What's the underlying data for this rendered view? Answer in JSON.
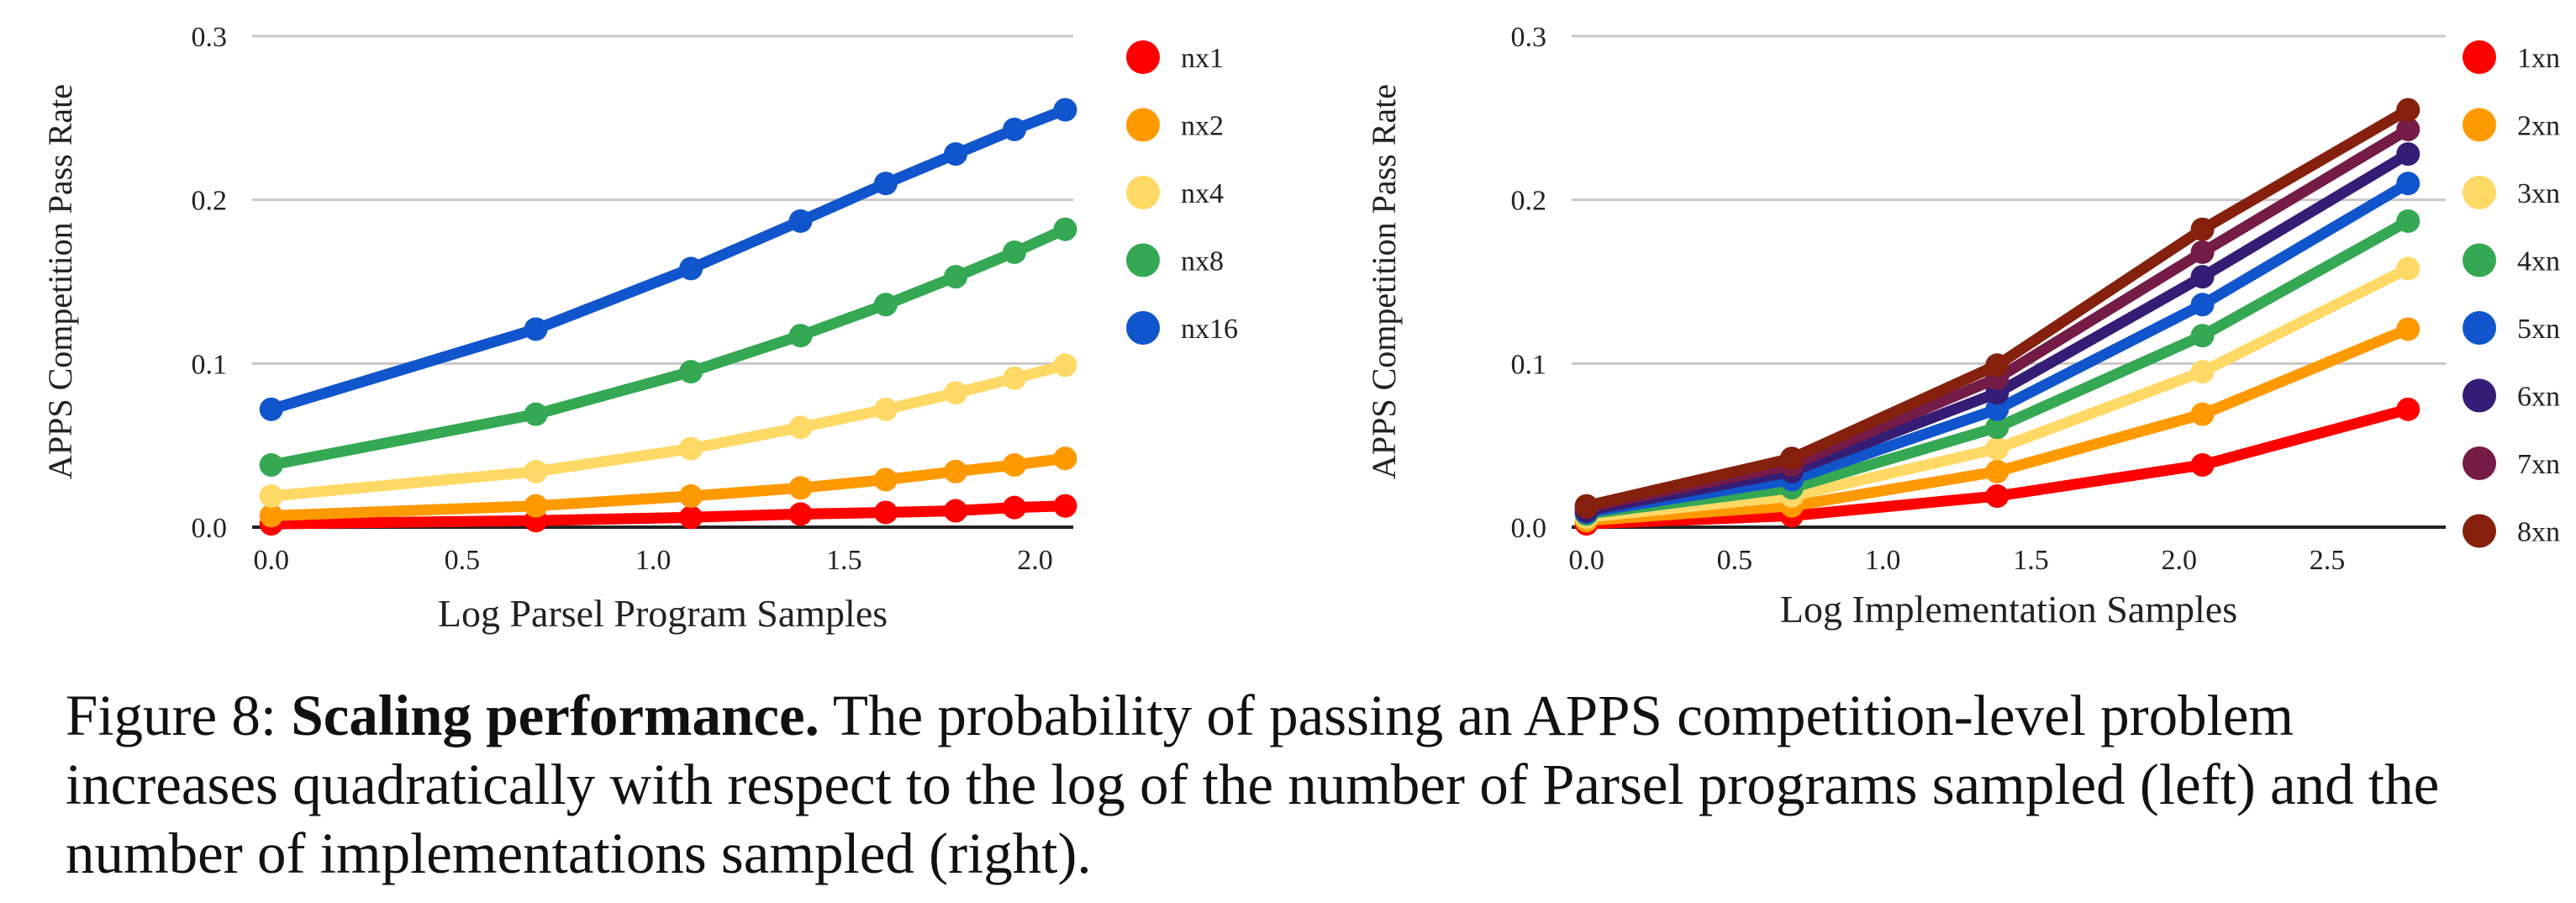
{
  "chart_data": [
    {
      "type": "line",
      "xlabel": "Log Parsel Program Samples",
      "ylabel": "APPS Competition Pass Rate",
      "xlim": [
        -0.05,
        2.1
      ],
      "ylim": [
        0,
        0.3
      ],
      "x_ticks": [
        0.0,
        0.5,
        1.0,
        1.5,
        2.0
      ],
      "x_tick_labels": [
        "0.0",
        "0.5",
        "1.0",
        "1.5",
        "2.0"
      ],
      "y_ticks": [
        0.0,
        0.1,
        0.2,
        0.3
      ],
      "y_tick_labels": [
        "0.0",
        "0.1",
        "0.2",
        "0.3"
      ],
      "grid": "horizontal",
      "legend_position": "right",
      "series": [
        {
          "name": "nx1",
          "color": "#ff0000",
          "x": [
            0.0,
            0.693,
            1.099,
            1.386,
            1.609,
            1.792,
            1.946,
            2.079
          ],
          "y": [
            0.002,
            0.004,
            0.006,
            0.008,
            0.009,
            0.01,
            0.012,
            0.013
          ]
        },
        {
          "name": "nx2",
          "color": "#ff9900",
          "x": [
            0.0,
            0.693,
            1.099,
            1.386,
            1.609,
            1.792,
            1.946,
            2.079
          ],
          "y": [
            0.007,
            0.013,
            0.019,
            0.024,
            0.029,
            0.034,
            0.038,
            0.042
          ]
        },
        {
          "name": "nx4",
          "color": "#ffd966",
          "x": [
            0.0,
            0.693,
            1.099,
            1.386,
            1.609,
            1.792,
            1.946,
            2.079
          ],
          "y": [
            0.019,
            0.034,
            0.048,
            0.061,
            0.072,
            0.082,
            0.091,
            0.099
          ]
        },
        {
          "name": "nx8",
          "color": "#34a853",
          "x": [
            0.0,
            0.693,
            1.099,
            1.386,
            1.609,
            1.792,
            1.946,
            2.079
          ],
          "y": [
            0.038,
            0.069,
            0.095,
            0.117,
            0.136,
            0.153,
            0.168,
            0.182
          ]
        },
        {
          "name": "nx16",
          "color": "#1155cc",
          "x": [
            0.0,
            0.693,
            1.099,
            1.386,
            1.609,
            1.792,
            1.946,
            2.079
          ],
          "y": [
            0.072,
            0.121,
            0.158,
            0.187,
            0.21,
            0.228,
            0.243,
            0.255
          ]
        }
      ]
    },
    {
      "type": "line",
      "xlabel": "Log Implementation Samples",
      "ylabel": "APPS Competition Pass Rate",
      "xlim": [
        -0.05,
        2.9
      ],
      "ylim": [
        0,
        0.3
      ],
      "x_ticks": [
        0.0,
        0.5,
        1.0,
        1.5,
        2.0,
        2.5
      ],
      "x_tick_labels": [
        "0.0",
        "0.5",
        "1.0",
        "1.5",
        "2.0",
        "2.5"
      ],
      "y_ticks": [
        0.0,
        0.1,
        0.2,
        0.3
      ],
      "y_tick_labels": [
        "0.0",
        "0.1",
        "0.2",
        "0.3"
      ],
      "grid": "horizontal",
      "legend_position": "right",
      "series": [
        {
          "name": "1xn",
          "color": "#ff0000",
          "x": [
            0.0,
            0.693,
            1.386,
            2.079,
            2.773
          ],
          "y": [
            0.002,
            0.007,
            0.019,
            0.038,
            0.072
          ]
        },
        {
          "name": "2xn",
          "color": "#ff9900",
          "x": [
            0.0,
            0.693,
            1.386,
            2.079,
            2.773
          ],
          "y": [
            0.004,
            0.013,
            0.034,
            0.069,
            0.121
          ]
        },
        {
          "name": "3xn",
          "color": "#ffd966",
          "x": [
            0.0,
            0.693,
            1.386,
            2.079,
            2.773
          ],
          "y": [
            0.006,
            0.019,
            0.048,
            0.095,
            0.158
          ]
        },
        {
          "name": "4xn",
          "color": "#34a853",
          "x": [
            0.0,
            0.693,
            1.386,
            2.079,
            2.773
          ],
          "y": [
            0.008,
            0.024,
            0.061,
            0.117,
            0.187
          ]
        },
        {
          "name": "5xn",
          "color": "#1155cc",
          "x": [
            0.0,
            0.693,
            1.386,
            2.079,
            2.773
          ],
          "y": [
            0.009,
            0.029,
            0.072,
            0.136,
            0.21
          ]
        },
        {
          "name": "6xn",
          "color": "#351c75",
          "x": [
            0.0,
            0.693,
            1.386,
            2.079,
            2.773
          ],
          "y": [
            0.01,
            0.034,
            0.082,
            0.153,
            0.228
          ]
        },
        {
          "name": "7xn",
          "color": "#741b47",
          "x": [
            0.0,
            0.693,
            1.386,
            2.079,
            2.773
          ],
          "y": [
            0.012,
            0.038,
            0.091,
            0.168,
            0.243
          ]
        },
        {
          "name": "8xn",
          "color": "#85200c",
          "x": [
            0.0,
            0.693,
            1.386,
            2.079,
            2.773
          ],
          "y": [
            0.013,
            0.042,
            0.099,
            0.182,
            0.255
          ]
        }
      ]
    }
  ],
  "caption": {
    "label": "Figure 8: ",
    "bold": "Scaling performance.",
    "text": " The probability of passing an APPS competition-level problem increases quadratically with respect to the log of the number of Parsel programs sampled (left) and the number of implementations sampled (right)."
  }
}
